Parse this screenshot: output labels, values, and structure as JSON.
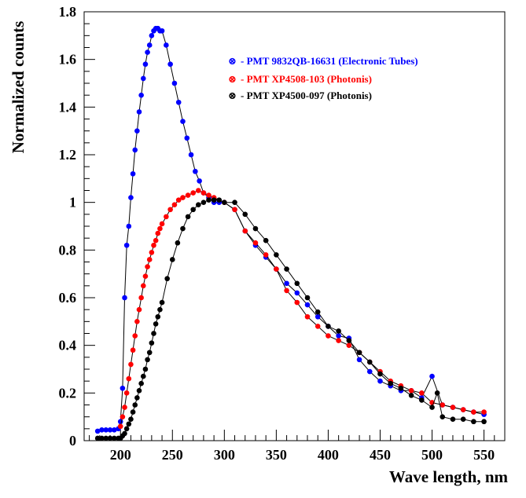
{
  "chart_data": {
    "type": "scatter",
    "title": "",
    "xlabel": "Wave length, nm",
    "ylabel": "Normalized counts",
    "xlim": [
      165,
      570
    ],
    "ylim": [
      0,
      1.8
    ],
    "x_ticks": [
      200,
      250,
      300,
      350,
      400,
      450,
      500,
      550
    ],
    "x_tick_labels": [
      "200",
      "250",
      "300",
      "350",
      "400",
      "450",
      "500",
      "550"
    ],
    "y_ticks": [
      0,
      0.2,
      0.4,
      0.6,
      0.8,
      1,
      1.2,
      1.4,
      1.6,
      1.8
    ],
    "y_tick_labels": [
      "0",
      "0.2",
      "0.4",
      "0.6",
      "0.8",
      "1",
      "1.2",
      "1.4",
      "1.6",
      "1.8"
    ],
    "grid": false,
    "legend_position": "top-right",
    "legend_marker": "⊗",
    "series": [
      {
        "name": "- PMT 9832QB-16631 (Electronic Tubes)",
        "color": "#0000ff",
        "x": [
          178,
          182,
          186,
          190,
          194,
          198,
          200,
          202,
          204,
          206,
          208,
          210,
          212,
          214,
          216,
          218,
          220,
          222,
          224,
          226,
          228,
          230,
          232,
          234,
          236,
          238,
          240,
          244,
          248,
          252,
          256,
          260,
          264,
          268,
          272,
          276,
          280,
          285,
          290,
          295,
          300,
          310,
          320,
          330,
          340,
          350,
          360,
          370,
          380,
          390,
          400,
          410,
          420,
          430,
          440,
          450,
          460,
          470,
          480,
          490,
          500,
          510,
          520,
          530,
          540,
          550
        ],
        "y": [
          0.04,
          0.045,
          0.045,
          0.045,
          0.045,
          0.05,
          0.08,
          0.22,
          0.6,
          0.82,
          0.9,
          1.02,
          1.12,
          1.22,
          1.3,
          1.38,
          1.45,
          1.52,
          1.58,
          1.63,
          1.66,
          1.7,
          1.72,
          1.73,
          1.73,
          1.72,
          1.72,
          1.66,
          1.58,
          1.5,
          1.42,
          1.34,
          1.27,
          1.2,
          1.13,
          1.09,
          1.04,
          1.02,
          1.0,
          1.0,
          1.0,
          0.97,
          0.88,
          0.82,
          0.77,
          0.72,
          0.66,
          0.62,
          0.57,
          0.52,
          0.48,
          0.44,
          0.43,
          0.34,
          0.29,
          0.25,
          0.23,
          0.21,
          0.21,
          0.18,
          0.27,
          0.15,
          0.14,
          0.13,
          0.12,
          0.11
        ]
      },
      {
        "name": "- PMT XP4508-103 (Photonis)",
        "color": "#ff0000",
        "x": [
          200,
          202,
          204,
          206,
          208,
          210,
          212,
          214,
          216,
          218,
          220,
          222,
          224,
          226,
          228,
          230,
          232,
          234,
          236,
          238,
          240,
          244,
          248,
          252,
          256,
          260,
          265,
          270,
          275,
          280,
          285,
          290,
          300,
          310,
          320,
          330,
          340,
          350,
          360,
          370,
          380,
          390,
          400,
          410,
          420,
          430,
          440,
          450,
          460,
          470,
          480,
          490,
          500,
          510,
          520,
          530,
          540,
          550
        ],
        "y": [
          0.06,
          0.1,
          0.14,
          0.2,
          0.26,
          0.32,
          0.38,
          0.44,
          0.5,
          0.55,
          0.6,
          0.65,
          0.69,
          0.73,
          0.76,
          0.79,
          0.82,
          0.84,
          0.87,
          0.89,
          0.91,
          0.94,
          0.97,
          0.99,
          1.01,
          1.02,
          1.03,
          1.04,
          1.05,
          1.04,
          1.03,
          1.02,
          1.0,
          0.97,
          0.88,
          0.83,
          0.78,
          0.72,
          0.63,
          0.58,
          0.52,
          0.48,
          0.44,
          0.42,
          0.4,
          0.37,
          0.33,
          0.29,
          0.25,
          0.23,
          0.21,
          0.2,
          0.16,
          0.15,
          0.14,
          0.13,
          0.12,
          0.12
        ]
      },
      {
        "name": "- PMT XP4500-097 (Photonis)",
        "color": "#000000",
        "x": [
          178,
          182,
          186,
          190,
          194,
          198,
          200,
          202,
          204,
          206,
          208,
          210,
          212,
          214,
          216,
          218,
          220,
          222,
          224,
          226,
          228,
          230,
          232,
          234,
          236,
          238,
          240,
          245,
          250,
          255,
          260,
          265,
          270,
          275,
          280,
          285,
          290,
          295,
          300,
          310,
          320,
          330,
          340,
          350,
          360,
          370,
          380,
          390,
          400,
          410,
          420,
          430,
          440,
          450,
          460,
          470,
          480,
          490,
          500,
          505,
          510,
          520,
          530,
          540,
          550
        ],
        "y": [
          0.01,
          0.01,
          0.01,
          0.01,
          0.01,
          0.01,
          0.01,
          0.02,
          0.03,
          0.05,
          0.07,
          0.09,
          0.12,
          0.15,
          0.18,
          0.21,
          0.24,
          0.27,
          0.3,
          0.34,
          0.37,
          0.41,
          0.45,
          0.49,
          0.52,
          0.55,
          0.58,
          0.68,
          0.76,
          0.83,
          0.89,
          0.94,
          0.97,
          0.99,
          1.0,
          1.01,
          1.01,
          1.01,
          1.0,
          1.0,
          0.95,
          0.89,
          0.84,
          0.78,
          0.72,
          0.66,
          0.6,
          0.54,
          0.48,
          0.46,
          0.42,
          0.37,
          0.33,
          0.28,
          0.24,
          0.22,
          0.19,
          0.17,
          0.14,
          0.2,
          0.1,
          0.09,
          0.09,
          0.08,
          0.08
        ]
      }
    ]
  }
}
